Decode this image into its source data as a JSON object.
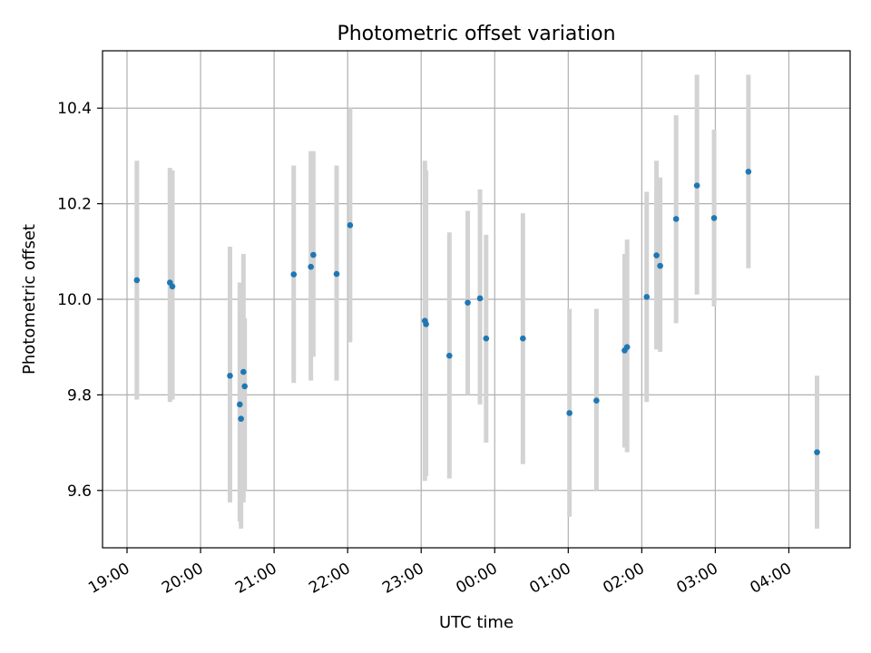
{
  "chart_data": {
    "type": "scatter",
    "title": "Photometric offset variation",
    "xlabel": "UTC time",
    "ylabel": "Photometric offset",
    "grid": true,
    "x_axis_kind": "time",
    "x_ticks": [
      "19:00",
      "20:00",
      "21:00",
      "22:00",
      "23:00",
      "00:00",
      "01:00",
      "02:00",
      "03:00",
      "04:00"
    ],
    "y_ticks": [
      9.6,
      9.8,
      10.0,
      10.2,
      10.4
    ],
    "xlim": [
      "18:40",
      "04:50"
    ],
    "ylim": [
      9.48,
      10.52
    ],
    "colors": {
      "points": "#1f77b4",
      "errorbars": "#d3d3d3",
      "grid": "#b0b0b0"
    },
    "series": [
      {
        "points": [
          {
            "x": "19:08",
            "y": 10.04,
            "err": [
              9.79,
              10.29
            ]
          },
          {
            "x": "19:35",
            "y": 10.035,
            "err": [
              9.785,
              10.275
            ]
          },
          {
            "x": "19:37",
            "y": 10.027,
            "err": [
              9.79,
              10.27
            ]
          },
          {
            "x": "20:24",
            "y": 9.84,
            "err": [
              9.575,
              10.11
            ]
          },
          {
            "x": "20:32",
            "y": 9.78,
            "err": [
              9.535,
              10.035
            ]
          },
          {
            "x": "20:33",
            "y": 9.75,
            "err": [
              9.52,
              9.98
            ]
          },
          {
            "x": "20:35",
            "y": 9.848,
            "err": [
              9.575,
              10.095
            ]
          },
          {
            "x": "20:36",
            "y": 9.818,
            "err": [
              9.6,
              9.96
            ]
          },
          {
            "x": "21:16",
            "y": 10.052,
            "err": [
              9.825,
              10.28
            ]
          },
          {
            "x": "21:30",
            "y": 10.068,
            "err": [
              9.83,
              10.31
            ]
          },
          {
            "x": "21:32",
            "y": 10.093,
            "err": [
              9.88,
              10.31
            ]
          },
          {
            "x": "21:51",
            "y": 10.053,
            "err": [
              9.83,
              10.28
            ]
          },
          {
            "x": "22:02",
            "y": 10.155,
            "err": [
              9.91,
              10.4
            ]
          },
          {
            "x": "23:03",
            "y": 9.955,
            "err": [
              9.62,
              10.29
            ]
          },
          {
            "x": "23:04",
            "y": 9.948,
            "err": [
              9.63,
              10.27
            ]
          },
          {
            "x": "23:23",
            "y": 9.882,
            "err": [
              9.625,
              10.14
            ]
          },
          {
            "x": "23:38",
            "y": 9.993,
            "err": [
              9.8,
              10.185
            ]
          },
          {
            "x": "23:48",
            "y": 10.002,
            "err": [
              9.78,
              10.23
            ]
          },
          {
            "x": "23:53",
            "y": 9.918,
            "err": [
              9.7,
              10.135
            ]
          },
          {
            "x": "00:23",
            "y": 9.918,
            "err": [
              9.655,
              10.18
            ]
          },
          {
            "x": "01:01",
            "y": 9.762,
            "err": [
              9.545,
              9.98
            ]
          },
          {
            "x": "01:23",
            "y": 9.788,
            "err": [
              9.6,
              9.98
            ]
          },
          {
            "x": "01:46",
            "y": 9.893,
            "err": [
              9.69,
              10.095
            ]
          },
          {
            "x": "01:48",
            "y": 9.9,
            "err": [
              9.68,
              10.125
            ]
          },
          {
            "x": "02:04",
            "y": 10.005,
            "err": [
              9.785,
              10.225
            ]
          },
          {
            "x": "02:12",
            "y": 10.092,
            "err": [
              9.895,
              10.29
            ]
          },
          {
            "x": "02:15",
            "y": 10.07,
            "err": [
              9.89,
              10.255
            ]
          },
          {
            "x": "02:28",
            "y": 10.168,
            "err": [
              9.95,
              10.385
            ]
          },
          {
            "x": "02:45",
            "y": 10.238,
            "err": [
              10.01,
              10.47
            ]
          },
          {
            "x": "02:59",
            "y": 10.17,
            "err": [
              9.985,
              10.355
            ]
          },
          {
            "x": "03:27",
            "y": 10.267,
            "err": [
              10.065,
              10.47
            ]
          },
          {
            "x": "04:23",
            "y": 9.68,
            "err": [
              9.52,
              9.84
            ]
          }
        ]
      }
    ]
  }
}
